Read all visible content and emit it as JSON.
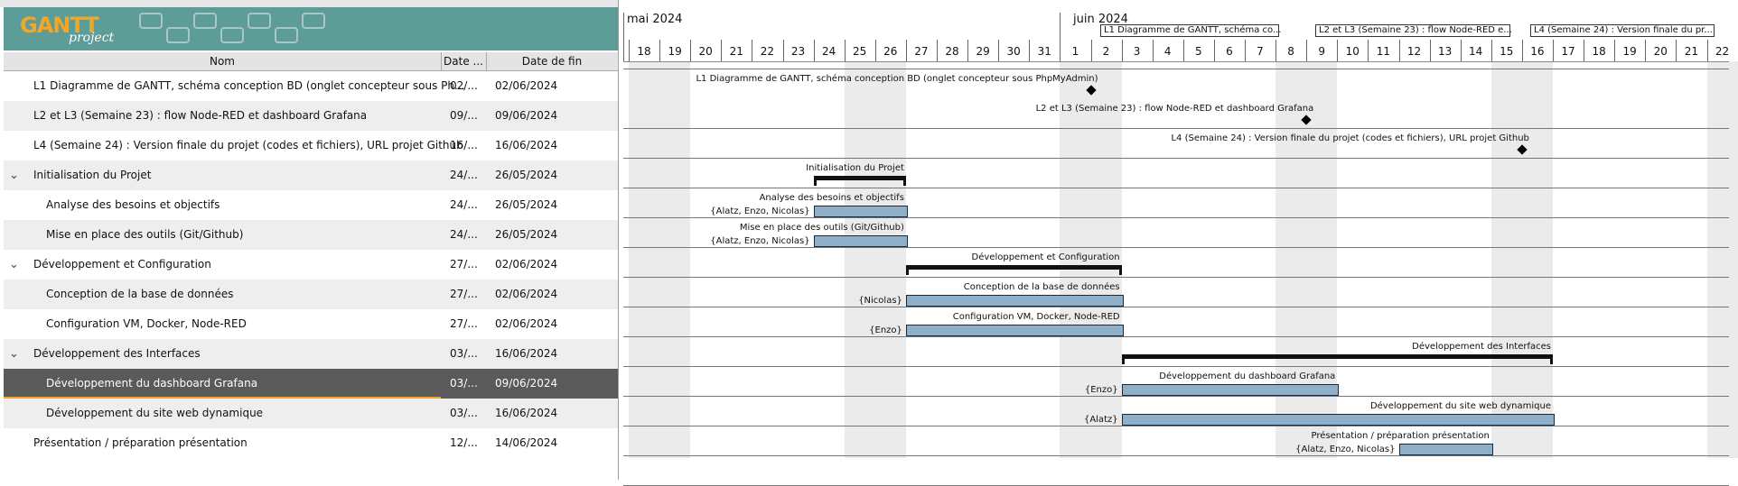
{
  "columns": {
    "name": "Nom",
    "start": "Date ...",
    "end": "Date de fin"
  },
  "logo": {
    "gantt": "GANTT",
    "project": "project"
  },
  "tasks": [
    {
      "name": "L1 Diagramme de GANTT, schéma conception BD (onglet concepteur sous Ph...",
      "start": "02/...",
      "end": "02/06/2024"
    },
    {
      "name": "L2 et L3 (Semaine 23) : flow Node-RED et dashboard Grafana",
      "start": "09/...",
      "end": "09/06/2024"
    },
    {
      "name": "L4 (Semaine 24) : Version finale du projet (codes et fichiers), URL projet Github",
      "start": "16/...",
      "end": "16/06/2024"
    },
    {
      "name": "Initialisation du Projet",
      "start": "24/...",
      "end": "26/05/2024"
    },
    {
      "name": "Analyse des besoins et objectifs",
      "start": "24/...",
      "end": "26/05/2024"
    },
    {
      "name": "Mise en place des outils (Git/Github)",
      "start": "24/...",
      "end": "26/05/2024"
    },
    {
      "name": "Développement et Configuration",
      "start": "27/...",
      "end": "02/06/2024"
    },
    {
      "name": "Conception de la base de données",
      "start": "27/...",
      "end": "02/06/2024"
    },
    {
      "name": "Configuration VM, Docker, Node-RED",
      "start": "27/...",
      "end": "02/06/2024"
    },
    {
      "name": "Développement des Interfaces",
      "start": "03/...",
      "end": "16/06/2024"
    },
    {
      "name": "Développement du dashboard Grafana",
      "start": "03/...",
      "end": "09/06/2024"
    },
    {
      "name": "Développement du site web dynamique",
      "start": "03/...",
      "end": "16/06/2024"
    },
    {
      "name": "Présentation / préparation présentation",
      "start": "12/...",
      "end": "14/06/2024"
    }
  ],
  "timeline": {
    "months": [
      "mai 2024",
      "juin 2024"
    ],
    "days": [
      "18",
      "19",
      "20",
      "21",
      "22",
      "23",
      "24",
      "25",
      "26",
      "27",
      "28",
      "29",
      "30",
      "31",
      "1",
      "2",
      "3",
      "4",
      "5",
      "6",
      "7",
      "8",
      "9",
      "10",
      "11",
      "12",
      "13",
      "14",
      "15",
      "16",
      "17",
      "18",
      "19",
      "20",
      "21",
      "22"
    ],
    "milestone_tags": [
      "L1 Diagramme de GANTT, schéma co...",
      "L2 et L3 (Semaine 23) : flow Node-RED e...",
      "L4 (Semaine 24) : Version finale du pr..."
    ],
    "labels": [
      "L1 Diagramme de GANTT, schéma conception BD (onglet concepteur sous PhpMyAdmin)",
      "L2 et L3 (Semaine 23) : flow Node-RED et dashboard Grafana",
      "L4 (Semaine 24) : Version finale du projet (codes et fichiers), URL projet Github",
      "Initialisation du Projet",
      "Analyse des besoins et objectifs",
      "Mise en place des outils (Git/Github)",
      "Développement et Configuration",
      "Conception de la base de données",
      "Configuration VM, Docker, Node-RED",
      "Développement des Interfaces",
      "Développement du dashboard Grafana",
      "Développement du site web dynamique",
      "Présentation / préparation présentation"
    ],
    "resources": [
      "",
      "",
      "",
      "",
      "{Alatz, Enzo, Nicolas}",
      "{Alatz, Enzo, Nicolas}",
      "",
      "{Nicolas}",
      "{Enzo}",
      "",
      "{Enzo}",
      "{Alatz}",
      "{Alatz, Enzo, Nicolas}"
    ]
  }
}
